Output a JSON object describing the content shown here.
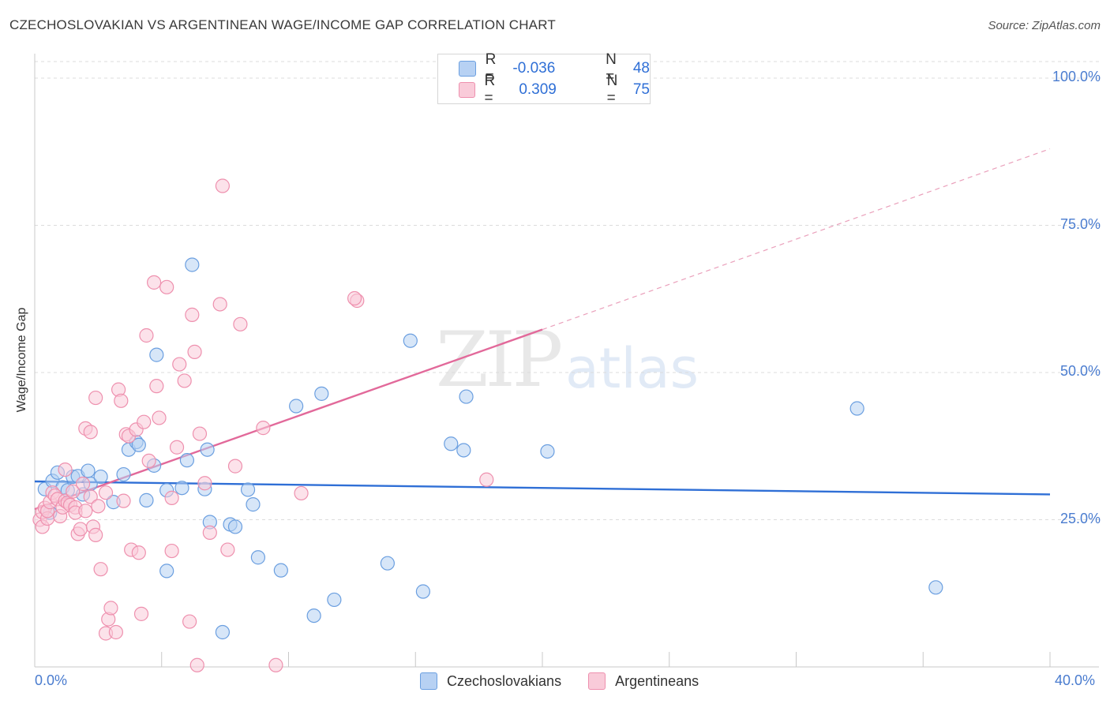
{
  "header": {
    "title": "CZECHOSLOVAKIAN VS ARGENTINEAN WAGE/INCOME GAP CORRELATION CHART",
    "source": "Source: ZipAtlas.com"
  },
  "watermark": {
    "zip": "ZIP",
    "atlas": "atlas"
  },
  "legend": {
    "rows": [
      {
        "r_label": "R =",
        "r_value": "-0.036",
        "n_label": "N =",
        "n_value": "48",
        "color": "#a9c7f0"
      },
      {
        "r_label": "R =",
        "r_value": "0.309",
        "n_label": "N =",
        "n_value": "75",
        "color": "#f5b8cb"
      }
    ]
  },
  "bottom_legend": [
    {
      "label": "Czechoslovakians",
      "color": "#a9c7f0"
    },
    {
      "label": "Argentineans",
      "color": "#f5b8cb"
    }
  ],
  "chart_data": {
    "type": "scatter",
    "xlabel": "",
    "ylabel": "Wage/Income Gap",
    "xlim": [
      0,
      40
    ],
    "ylim": [
      0,
      100
    ],
    "x_tick_labels": [
      "0.0%",
      "40.0%"
    ],
    "y_tick_labels": [
      "100.0%",
      "75.0%",
      "50.0%",
      "25.0%"
    ],
    "y_ticks": [
      100,
      75,
      50,
      25
    ],
    "grid": true,
    "series": [
      {
        "name": "Czechoslovakians",
        "color": "#6b9fe0",
        "fill": "#b7d1f3",
        "trend": {
          "x": [
            0,
            40
          ],
          "y": [
            31.5,
            29.3
          ],
          "style": "solid"
        },
        "points": [
          [
            0.4,
            30.2
          ],
          [
            0.6,
            26.2
          ],
          [
            0.7,
            31.6
          ],
          [
            0.9,
            33.0
          ],
          [
            1.1,
            30.5
          ],
          [
            1.3,
            30.0
          ],
          [
            1.5,
            32.3
          ],
          [
            1.7,
            32.4
          ],
          [
            1.9,
            29.3
          ],
          [
            2.1,
            33.3
          ],
          [
            2.2,
            31.1
          ],
          [
            2.6,
            32.3
          ],
          [
            3.1,
            28.0
          ],
          [
            3.5,
            32.7
          ],
          [
            3.7,
            36.9
          ],
          [
            4.0,
            38.2
          ],
          [
            4.1,
            37.7
          ],
          [
            4.4,
            28.3
          ],
          [
            4.7,
            34.2
          ],
          [
            4.8,
            53.0
          ],
          [
            5.2,
            30.0
          ],
          [
            5.2,
            16.3
          ],
          [
            5.8,
            30.4
          ],
          [
            6.0,
            35.1
          ],
          [
            6.2,
            68.3
          ],
          [
            6.7,
            30.2
          ],
          [
            6.8,
            36.9
          ],
          [
            6.9,
            24.6
          ],
          [
            7.4,
            5.9
          ],
          [
            7.7,
            24.2
          ],
          [
            7.9,
            23.8
          ],
          [
            8.4,
            30.1
          ],
          [
            8.6,
            27.6
          ],
          [
            8.8,
            18.6
          ],
          [
            9.7,
            16.4
          ],
          [
            10.3,
            44.3
          ],
          [
            11.0,
            8.7
          ],
          [
            11.3,
            46.4
          ],
          [
            11.8,
            11.4
          ],
          [
            13.9,
            17.6
          ],
          [
            14.8,
            55.4
          ],
          [
            15.3,
            12.8
          ],
          [
            16.4,
            37.9
          ],
          [
            16.9,
            36.8
          ],
          [
            17.0,
            45.9
          ],
          [
            20.2,
            36.6
          ],
          [
            32.4,
            43.9
          ],
          [
            35.5,
            13.5
          ]
        ]
      },
      {
        "name": "Argentineans",
        "color": "#ee90ae",
        "fill": "#f9cbd9",
        "trend": {
          "x": [
            0,
            20
          ],
          "y": [
            26.8,
            57.3
          ],
          "style": "solid",
          "ext": {
            "x": [
              20,
              40
            ],
            "y": [
              57.3,
              88
            ]
          }
        },
        "points": [
          [
            0.2,
            25.0
          ],
          [
            0.3,
            26.3
          ],
          [
            0.3,
            23.8
          ],
          [
            0.4,
            27.0
          ],
          [
            0.5,
            25.2
          ],
          [
            0.5,
            26.5
          ],
          [
            0.6,
            28.0
          ],
          [
            0.7,
            29.6
          ],
          [
            0.8,
            29.1
          ],
          [
            0.9,
            28.5
          ],
          [
            1.0,
            25.6
          ],
          [
            1.1,
            27.1
          ],
          [
            1.2,
            28.2
          ],
          [
            1.2,
            33.5
          ],
          [
            1.3,
            27.9
          ],
          [
            1.4,
            27.5
          ],
          [
            1.5,
            29.8
          ],
          [
            1.6,
            27.1
          ],
          [
            1.6,
            26.2
          ],
          [
            1.7,
            22.6
          ],
          [
            1.8,
            23.4
          ],
          [
            1.9,
            31.1
          ],
          [
            2.0,
            40.5
          ],
          [
            2.2,
            28.9
          ],
          [
            2.2,
            39.9
          ],
          [
            2.3,
            23.8
          ],
          [
            2.4,
            45.7
          ],
          [
            2.4,
            22.4
          ],
          [
            2.5,
            27.3
          ],
          [
            2.6,
            16.6
          ],
          [
            2.8,
            29.6
          ],
          [
            2.9,
            8.1
          ],
          [
            3.0,
            10.0
          ],
          [
            2.8,
            5.7
          ],
          [
            3.2,
            5.9
          ],
          [
            3.3,
            47.1
          ],
          [
            3.4,
            45.2
          ],
          [
            3.5,
            28.2
          ],
          [
            3.6,
            39.5
          ],
          [
            3.7,
            39.2
          ],
          [
            3.8,
            19.9
          ],
          [
            4.0,
            40.3
          ],
          [
            4.1,
            19.4
          ],
          [
            4.2,
            9.0
          ],
          [
            4.3,
            41.6
          ],
          [
            4.5,
            35.0
          ],
          [
            4.4,
            56.3
          ],
          [
            4.7,
            65.3
          ],
          [
            4.8,
            47.7
          ],
          [
            4.9,
            42.3
          ],
          [
            5.2,
            64.5
          ],
          [
            5.4,
            28.7
          ],
          [
            5.4,
            19.7
          ],
          [
            5.6,
            37.3
          ],
          [
            5.7,
            51.4
          ],
          [
            5.9,
            48.6
          ],
          [
            6.1,
            7.7
          ],
          [
            6.2,
            59.8
          ],
          [
            6.3,
            53.5
          ],
          [
            6.4,
            0.3
          ],
          [
            6.5,
            39.6
          ],
          [
            6.7,
            31.2
          ],
          [
            6.9,
            22.8
          ],
          [
            7.3,
            61.6
          ],
          [
            7.4,
            81.7
          ],
          [
            7.6,
            19.9
          ],
          [
            8.1,
            58.2
          ],
          [
            7.9,
            34.1
          ],
          [
            9.0,
            40.6
          ],
          [
            9.5,
            0.3
          ],
          [
            10.5,
            29.5
          ],
          [
            12.7,
            62.2
          ],
          [
            12.6,
            62.6
          ],
          [
            17.8,
            31.8
          ],
          [
            2.0,
            26.5
          ]
        ]
      }
    ]
  }
}
